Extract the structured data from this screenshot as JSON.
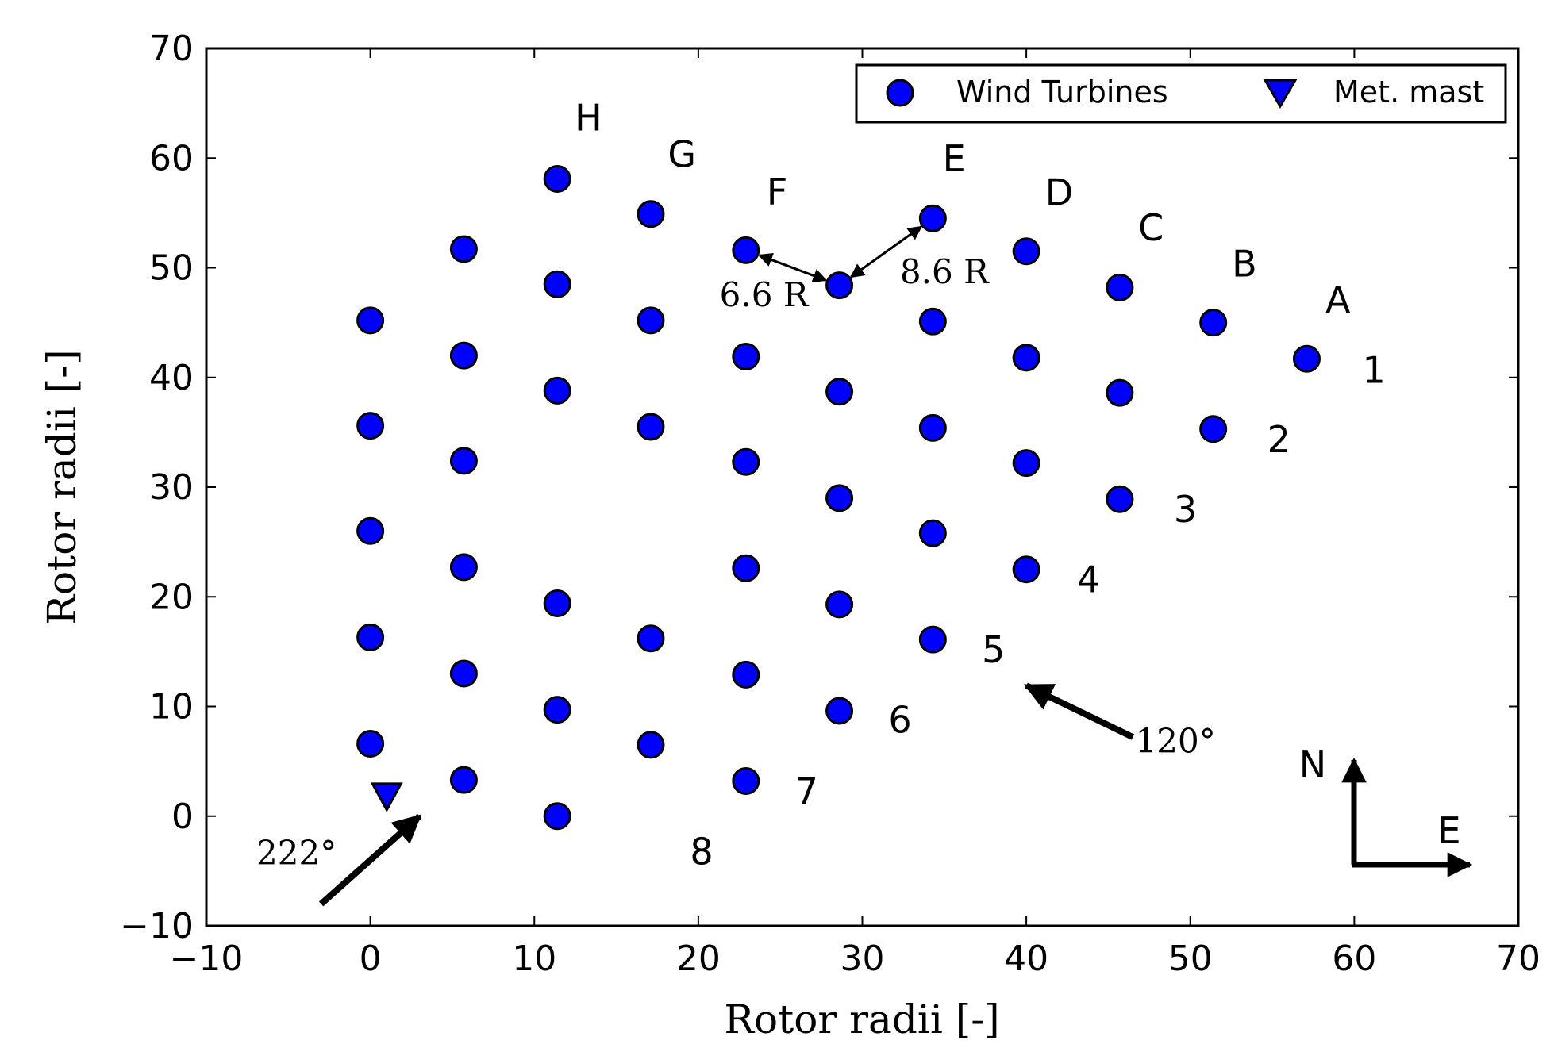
{
  "chart_data": {
    "type": "scatter",
    "xlabel": "Rotor radii [-]",
    "ylabel": "Rotor radii [-]",
    "xlim": [
      -10,
      70
    ],
    "ylim": [
      -10,
      70
    ],
    "xticks": [
      "−10",
      "0",
      "10",
      "20",
      "30",
      "40",
      "50",
      "60",
      "70"
    ],
    "yticks": [
      "−10",
      "0",
      "10",
      "20",
      "30",
      "40",
      "50",
      "60",
      "70"
    ],
    "grid": false,
    "legend_position": "top-right",
    "legend": {
      "turbines": "Wind Turbines",
      "mast": "Met. mast"
    },
    "colors": {
      "marker_fill": "#0000ff",
      "marker_edge": "#000000"
    },
    "series": [
      {
        "name": "Wind Turbines",
        "marker": "circle",
        "points": [
          [
            0,
            45.2
          ],
          [
            0,
            35.6
          ],
          [
            0,
            26.0
          ],
          [
            0,
            16.3
          ],
          [
            0,
            6.6
          ],
          [
            5.7,
            51.7
          ],
          [
            5.7,
            42.0
          ],
          [
            5.7,
            32.4
          ],
          [
            5.7,
            22.7
          ],
          [
            5.7,
            13.0
          ],
          [
            5.7,
            3.3
          ],
          [
            11.4,
            58.1
          ],
          [
            11.4,
            48.5
          ],
          [
            11.4,
            38.8
          ],
          [
            11.4,
            19.4
          ],
          [
            11.4,
            9.7
          ],
          [
            11.4,
            0.0
          ],
          [
            17.1,
            54.9
          ],
          [
            17.1,
            45.2
          ],
          [
            17.1,
            35.5
          ],
          [
            17.1,
            16.2
          ],
          [
            17.1,
            6.5
          ],
          [
            22.9,
            51.6
          ],
          [
            22.9,
            41.9
          ],
          [
            22.9,
            32.3
          ],
          [
            22.9,
            22.6
          ],
          [
            22.9,
            12.9
          ],
          [
            22.9,
            3.2
          ],
          [
            28.6,
            48.4
          ],
          [
            28.6,
            38.7
          ],
          [
            28.6,
            29.0
          ],
          [
            28.6,
            19.3
          ],
          [
            28.6,
            9.6
          ],
          [
            34.3,
            54.5
          ],
          [
            34.3,
            45.1
          ],
          [
            34.3,
            35.4
          ],
          [
            34.3,
            25.8
          ],
          [
            34.3,
            16.1
          ],
          [
            40.0,
            51.5
          ],
          [
            40.0,
            41.8
          ],
          [
            40.0,
            32.2
          ],
          [
            40.0,
            22.5
          ],
          [
            45.7,
            48.2
          ],
          [
            45.7,
            38.6
          ],
          [
            45.7,
            28.9
          ],
          [
            51.4,
            45.0
          ],
          [
            51.4,
            35.3
          ],
          [
            57.1,
            41.7
          ]
        ]
      },
      {
        "name": "Met. mast",
        "marker": "triangle-down",
        "points": [
          [
            1.0,
            1.8
          ]
        ]
      }
    ],
    "annotations": {
      "column_labels": [
        {
          "text": "H",
          "x": 13.3,
          "y": 62.5
        },
        {
          "text": "G",
          "x": 19.0,
          "y": 59.2
        },
        {
          "text": "F",
          "x": 24.8,
          "y": 55.8
        },
        {
          "text": "E",
          "x": 35.6,
          "y": 58.8
        },
        {
          "text": "D",
          "x": 42.0,
          "y": 55.7
        },
        {
          "text": "C",
          "x": 47.6,
          "y": 52.5
        },
        {
          "text": "B",
          "x": 53.3,
          "y": 49.2
        },
        {
          "text": "A",
          "x": 59.0,
          "y": 45.9
        }
      ],
      "row_labels": [
        {
          "text": "1",
          "x": 61.2,
          "y": 39.5
        },
        {
          "text": "2",
          "x": 55.4,
          "y": 33.2
        },
        {
          "text": "3",
          "x": 49.7,
          "y": 26.8
        },
        {
          "text": "4",
          "x": 43.8,
          "y": 20.4
        },
        {
          "text": "5",
          "x": 38.0,
          "y": 14.0
        },
        {
          "text": "6",
          "x": 32.3,
          "y": 7.6
        },
        {
          "text": "7",
          "x": 26.6,
          "y": 1.1
        },
        {
          "text": "8",
          "x": 20.2,
          "y": -4.4
        }
      ],
      "spacing": [
        {
          "text": "6.6 R",
          "x": 24.0,
          "y": 46.5
        },
        {
          "text": "8.6 R",
          "x": 35.0,
          "y": 48.6
        }
      ],
      "wind_directions": [
        {
          "text": "222°",
          "x": -4.5,
          "y": -4.4
        },
        {
          "text": "120°",
          "x": 49.1,
          "y": 5.8
        }
      ],
      "compass": {
        "north": "N",
        "east": "E"
      }
    }
  }
}
